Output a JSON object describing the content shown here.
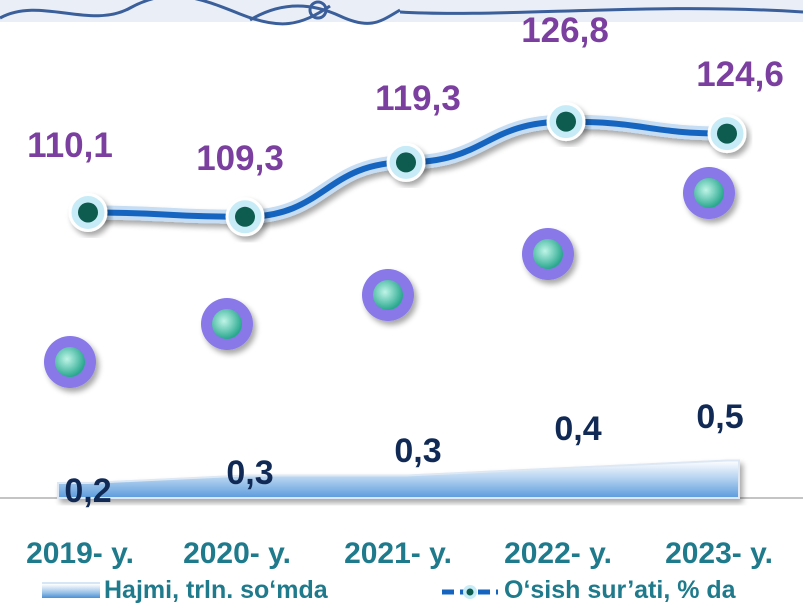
{
  "chart_data": {
    "type": "line",
    "categories": [
      "2019- y.",
      "2020- y.",
      "2021- y.",
      "2022- y.",
      "2023- y."
    ],
    "series": [
      {
        "name": "O‘sish sur’ati, % da",
        "kind": "line",
        "values": [
          110.1,
          109.3,
          119.3,
          126.8,
          124.6
        ],
        "labels": [
          "110,1",
          "109,3",
          "119,3",
          "126,8",
          "124,6"
        ],
        "color": "#1565c0"
      },
      {
        "name": "Hajmi, trln. so‘mda",
        "kind": "area",
        "values": [
          0.2,
          0.3,
          0.3,
          0.4,
          0.5
        ],
        "labels": [
          "0,2",
          "0,3",
          "0,3",
          "0,4",
          "0,5"
        ],
        "color": "#4a8fd6"
      }
    ],
    "extra_markers": {
      "color": "#8878e8",
      "count": 5
    },
    "legend_position": "bottom",
    "label_colors": {
      "line": "#7b3fa0",
      "area": "#102a55",
      "category": "#1f7a8c"
    }
  },
  "legend": {
    "area_label": "Hajmi, trln. so‘mda",
    "line_label": "O‘sish sur’ati, % da"
  }
}
